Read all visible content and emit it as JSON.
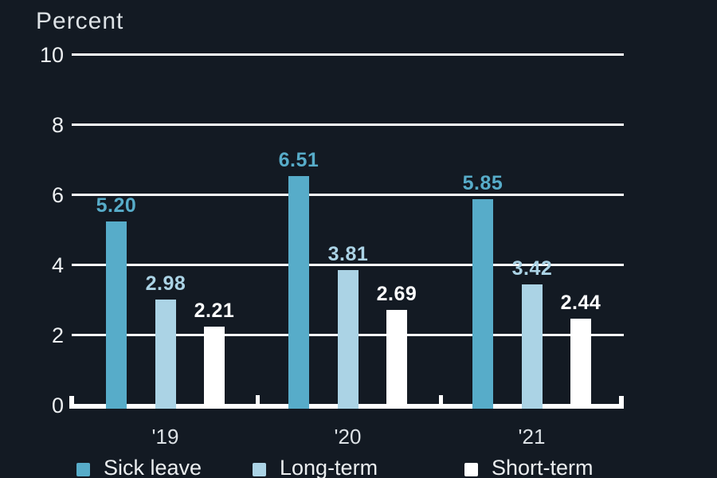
{
  "chart_data": {
    "type": "bar",
    "title": "Percent",
    "ylabel": "Percent",
    "categories": [
      "'19",
      "'20",
      "'21"
    ],
    "series": [
      {
        "name": "Sick leave",
        "color": "#57acc9",
        "label_color": "#57acc9",
        "values": [
          5.2,
          6.51,
          5.85
        ],
        "labels": [
          "5.20",
          "6.51",
          "5.85"
        ]
      },
      {
        "name": "Long-term",
        "color": "#abd3e5",
        "label_color": "#abd3e5",
        "values": [
          2.98,
          3.81,
          3.42
        ],
        "labels": [
          "2.98",
          "3.81",
          "3.42"
        ]
      },
      {
        "name": "Short-term",
        "color": "#ffffff",
        "label_color": "#ffffff",
        "values": [
          2.21,
          2.69,
          2.44
        ],
        "labels": [
          "2.21",
          "2.69",
          "2.44"
        ]
      }
    ],
    "yticks": [
      0,
      2,
      4,
      6,
      8,
      10
    ],
    "ylim": [
      0,
      10
    ],
    "grid": true,
    "legend_position": "bottom"
  },
  "colors": {
    "background": "#131a23",
    "grid": "#ffffff",
    "axis_text": "#eef1f3",
    "title_text": "#dde2e6"
  }
}
